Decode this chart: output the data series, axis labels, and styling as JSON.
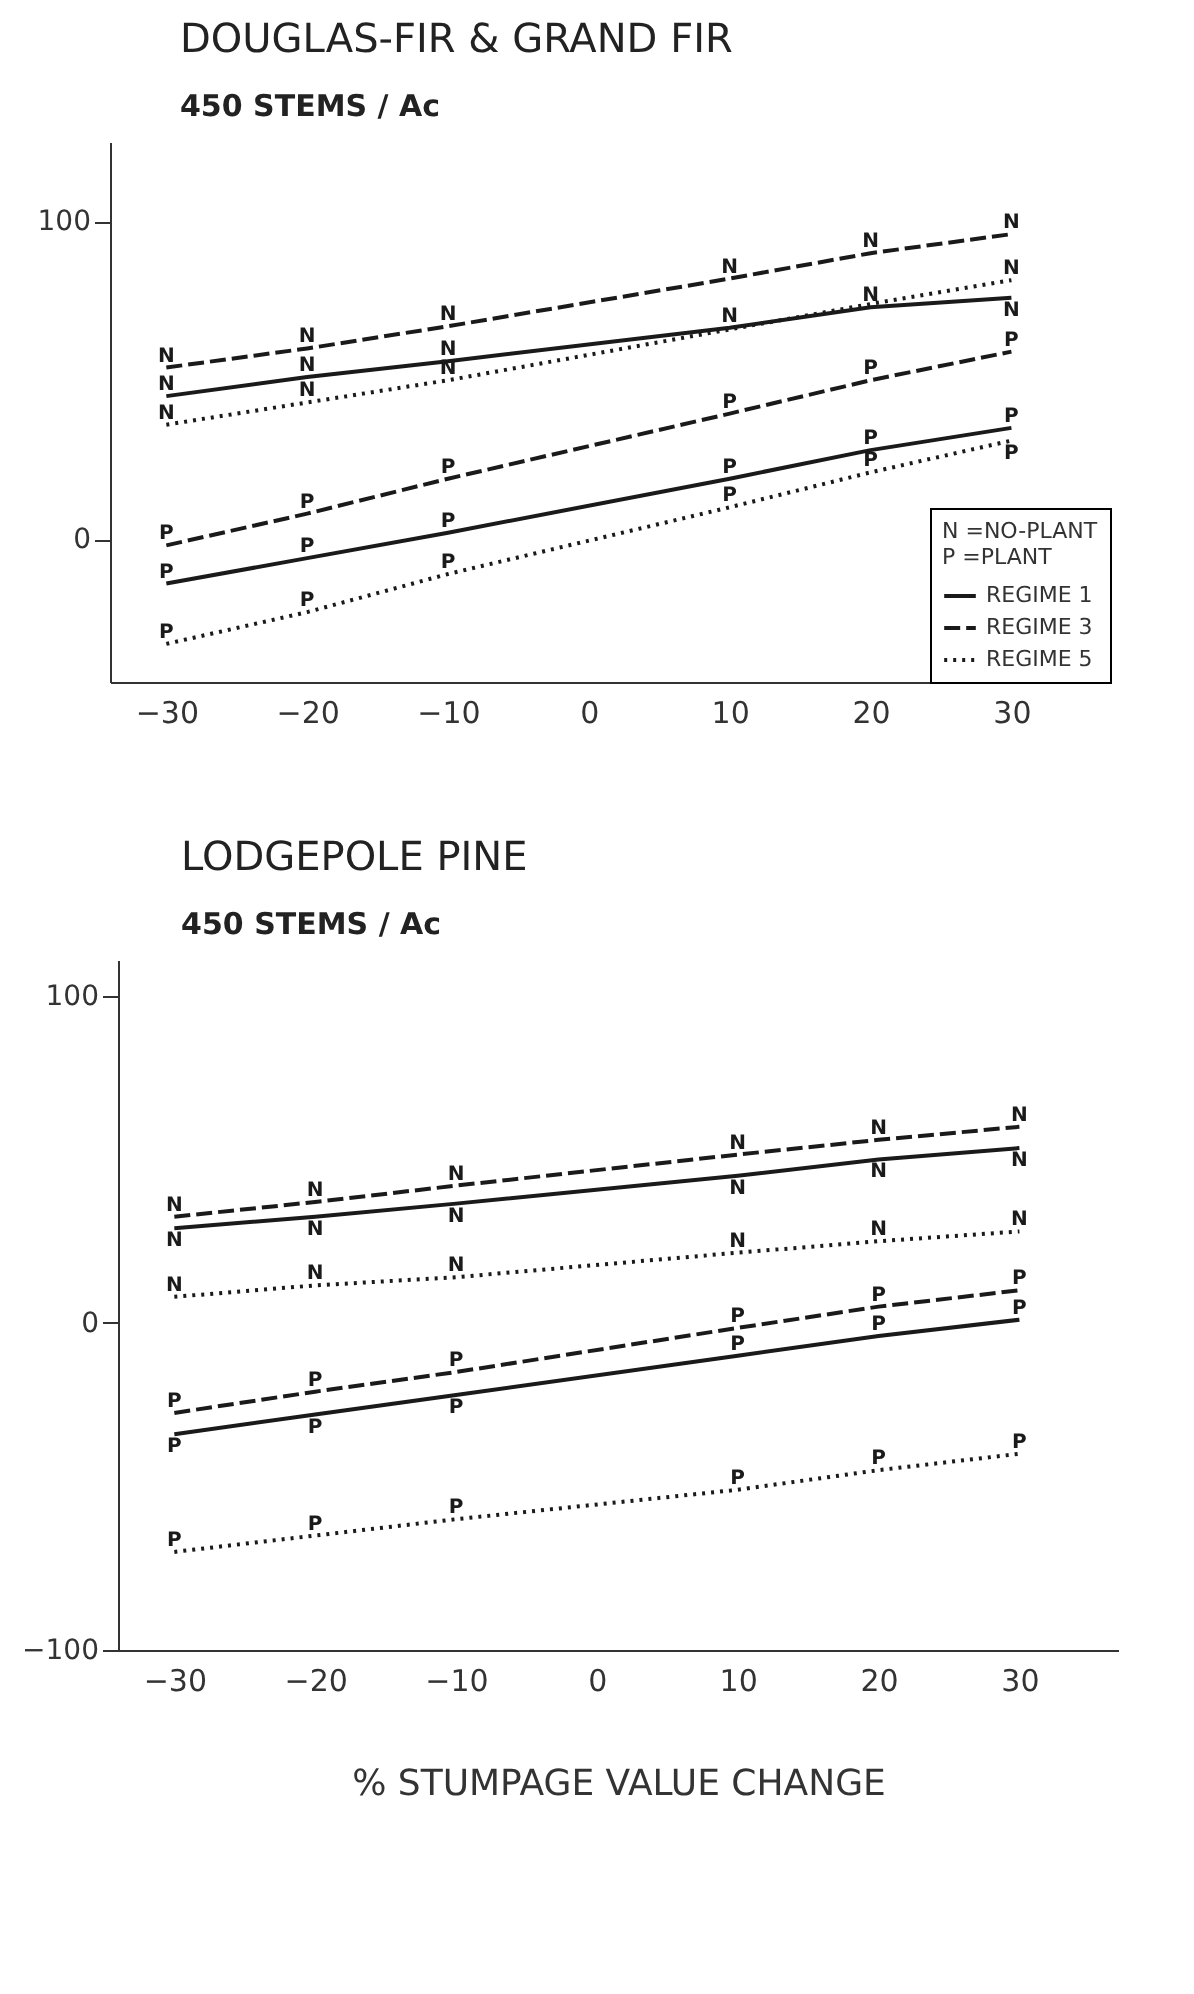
{
  "chart_data": [
    {
      "type": "line",
      "title": "DOUGLAS-FIR & GRAND FIR",
      "subtitle": "450 STEMS / Ac",
      "legend": "bottom right",
      "legend_title": "N =NO-PLANT\nP =PLANT",
      "marker": "none",
      "x": [
        -30,
        -20,
        -10,
        10,
        20,
        30
      ],
      "xlim": [
        -34,
        37
      ],
      "xticks": [
        -30,
        -20,
        -10,
        0,
        10,
        20,
        30
      ],
      "ylim": [
        -45,
        125
      ],
      "yticks": [
        0,
        100
      ],
      "grid": false,
      "series": [
        {
          "name": "REGIME 1",
          "color": "#1a1a1a",
          "line_style": "solid",
          "values": [
            45,
            51,
            56,
            66.5,
            73,
            76
          ]
        },
        {
          "name": "REGIME 3",
          "color": "#1a1a1a",
          "line_style": "dashed",
          "values": [
            54,
            60,
            67,
            82,
            90,
            96
          ]
        },
        {
          "name": "REGIME 5",
          "color": "#1a1a1a",
          "line_style": "dotted",
          "values": [
            36,
            43,
            50,
            66,
            74,
            81.5
          ]
        },
        {
          "color": "#1a1a1a",
          "line_style": "solid",
          "values": [
            -14,
            -6,
            2,
            19,
            28,
            35
          ]
        },
        {
          "color": "#1a1a1a",
          "line_style": "dashed",
          "values": [
            -2,
            8,
            19,
            39.5,
            50,
            59
          ]
        },
        {
          "color": "#1a1a1a",
          "line_style": "dotted",
          "values": [
            -33,
            -23,
            -11,
            10,
            21,
            31
          ]
        }
      ],
      "annotations": [
        {
          "text": "N",
          "x": -30,
          "y": 45
        },
        {
          "text": "N",
          "x": -20,
          "y": 51
        },
        {
          "text": "N",
          "x": -10,
          "y": 56
        },
        {
          "text": "N",
          "x": 10,
          "y": 66.5
        },
        {
          "text": "N",
          "x": 20,
          "y": 73
        },
        {
          "text": "N",
          "x": 30,
          "y": 76
        },
        {
          "text": "N",
          "x": -30,
          "y": 54
        },
        {
          "text": "N",
          "x": -20,
          "y": 60
        },
        {
          "text": "N",
          "x": -10,
          "y": 67
        },
        {
          "text": "N",
          "x": 10,
          "y": 82
        },
        {
          "text": "N",
          "x": 20,
          "y": 90
        },
        {
          "text": "N",
          "x": 30,
          "y": 96
        },
        {
          "text": "N",
          "x": -30,
          "y": 36
        },
        {
          "text": "N",
          "x": -20,
          "y": 43
        },
        {
          "text": "N",
          "x": -10,
          "y": 50
        },
        {
          "text": "N",
          "x": 30,
          "y": 81.5
        },
        {
          "text": "P",
          "x": -30,
          "y": -14
        },
        {
          "text": "P",
          "x": -20,
          "y": -6
        },
        {
          "text": "P",
          "x": -10,
          "y": 2
        },
        {
          "text": "P",
          "x": 10,
          "y": 19
        },
        {
          "text": "P",
          "x": 20,
          "y": 28
        },
        {
          "text": "P",
          "x": 30,
          "y": 35
        },
        {
          "text": "P",
          "x": -30,
          "y": -2
        },
        {
          "text": "P",
          "x": -20,
          "y": 8
        },
        {
          "text": "P",
          "x": -10,
          "y": 19
        },
        {
          "text": "P",
          "x": 10,
          "y": 39.5
        },
        {
          "text": "P",
          "x": 20,
          "y": 50
        },
        {
          "text": "P",
          "x": 30,
          "y": 59
        },
        {
          "text": "P",
          "x": -30,
          "y": -33
        },
        {
          "text": "P",
          "x": -20,
          "y": -23
        },
        {
          "text": "P",
          "x": -10,
          "y": -11
        },
        {
          "text": "P",
          "x": 10,
          "y": 10
        },
        {
          "text": "P",
          "x": 20,
          "y": 21
        },
        {
          "text": "P",
          "x": 30,
          "y": 31
        }
      ]
    },
    {
      "type": "line",
      "title": "LODGEPOLE PINE",
      "subtitle": "450 STEMS / Ac",
      "xlabel": "% STUMPAGE VALUE CHANGE",
      "marker": "none",
      "x": [
        -30,
        -20,
        -10,
        10,
        20,
        30
      ],
      "xlim": [
        -34,
        37
      ],
      "xticks": [
        -30,
        -20,
        -10,
        0,
        10,
        20,
        30
      ],
      "ylim": [
        -100,
        111
      ],
      "yticks": [
        -100,
        0,
        100
      ],
      "grid": false,
      "series": [
        {
          "color": "#1a1a1a",
          "line_style": "solid",
          "values": [
            29,
            32.5,
            36.5,
            45,
            50,
            53.5
          ]
        },
        {
          "color": "#1a1a1a",
          "line_style": "dashed",
          "values": [
            32.5,
            37,
            42,
            51.5,
            56,
            60
          ]
        },
        {
          "color": "#1a1a1a",
          "line_style": "dotted",
          "values": [
            8,
            11.5,
            14,
            21.5,
            25,
            28
          ]
        },
        {
          "color": "#1a1a1a",
          "line_style": "solid",
          "values": [
            -34,
            -28,
            -22,
            -10,
            -4,
            1
          ]
        },
        {
          "color": "#1a1a1a",
          "line_style": "dashed",
          "values": [
            -27.5,
            -21,
            -15,
            -1.5,
            5,
            10
          ]
        },
        {
          "color": "#1a1a1a",
          "line_style": "dotted",
          "values": [
            -70,
            -65,
            -60,
            -51,
            -45,
            -40
          ]
        }
      ],
      "annotations": [
        {
          "text": "N",
          "x": -30,
          "y": 29
        },
        {
          "text": "N",
          "x": -20,
          "y": 32.5
        },
        {
          "text": "N",
          "x": -10,
          "y": 36.5
        },
        {
          "text": "N",
          "x": 10,
          "y": 45
        },
        {
          "text": "N",
          "x": 20,
          "y": 50
        },
        {
          "text": "N",
          "x": 30,
          "y": 53.5
        },
        {
          "text": "N",
          "x": -30,
          "y": 32.5
        },
        {
          "text": "N",
          "x": -20,
          "y": 37
        },
        {
          "text": "N",
          "x": -10,
          "y": 42
        },
        {
          "text": "N",
          "x": 10,
          "y": 51.5
        },
        {
          "text": "N",
          "x": 20,
          "y": 56
        },
        {
          "text": "N",
          "x": 30,
          "y": 60
        },
        {
          "text": "N",
          "x": -30,
          "y": 8
        },
        {
          "text": "N",
          "x": -20,
          "y": 11.5
        },
        {
          "text": "N",
          "x": -10,
          "y": 14
        },
        {
          "text": "N",
          "x": 10,
          "y": 21.5
        },
        {
          "text": "N",
          "x": 20,
          "y": 25
        },
        {
          "text": "N",
          "x": 30,
          "y": 28
        },
        {
          "text": "P",
          "x": -30,
          "y": -34
        },
        {
          "text": "P",
          "x": -20,
          "y": -28
        },
        {
          "text": "P",
          "x": -10,
          "y": -22
        },
        {
          "text": "P",
          "x": 10,
          "y": -10
        },
        {
          "text": "P",
          "x": 20,
          "y": -4
        },
        {
          "text": "P",
          "x": 30,
          "y": 1
        },
        {
          "text": "P",
          "x": -30,
          "y": -27.5
        },
        {
          "text": "P",
          "x": -20,
          "y": -21
        },
        {
          "text": "P",
          "x": -10,
          "y": -15
        },
        {
          "text": "P",
          "x": 10,
          "y": -1.5
        },
        {
          "text": "P",
          "x": 20,
          "y": 5
        },
        {
          "text": "P",
          "x": 30,
          "y": 10
        },
        {
          "text": "P",
          "x": -30,
          "y": -70
        },
        {
          "text": "P",
          "x": -20,
          "y": -65
        },
        {
          "text": "P",
          "x": -10,
          "y": -60
        },
        {
          "text": "P",
          "x": 10,
          "y": -51
        },
        {
          "text": "P",
          "x": 20,
          "y": -45
        },
        {
          "text": "P",
          "x": 30,
          "y": -40
        }
      ]
    }
  ]
}
